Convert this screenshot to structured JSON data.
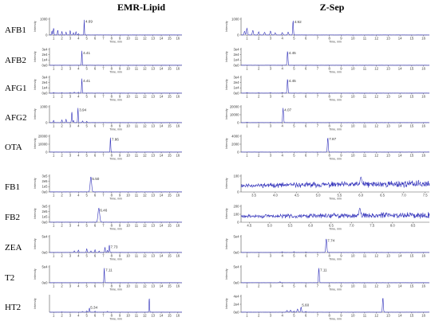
{
  "columns": [
    "EMR-Lipid",
    "Z-Sep"
  ],
  "rows": [
    "AFB1",
    "AFB2",
    "AFG1",
    "AFG2",
    "OTA",
    "FB1",
    "FB2",
    "ZEA",
    "T2",
    "HT2"
  ],
  "colors": {
    "trace": "#3333bb",
    "axis": "#555555"
  },
  "chart_data": {
    "type": "line",
    "panel_x_title": "Time, min",
    "panel_y_title": "Intensity",
    "panels": [
      {
        "row": "AFB1",
        "col": 0,
        "xr": [
          0.5,
          16.5
        ],
        "ticks": [
          "1",
          "2",
          "3",
          "4",
          "5",
          "6",
          "7",
          "8",
          "9",
          "10",
          "11",
          "12",
          "13",
          "14",
          "15",
          "16"
        ],
        "yticks": [
          "1000",
          "0"
        ],
        "ymax": 1400,
        "peak": {
          "x": 4.69,
          "h": 1350,
          "w": 0.04,
          "label": "4.69"
        },
        "base": [
          [
            0.8,
            350
          ],
          [
            1.0,
            600
          ],
          [
            1.5,
            420
          ],
          [
            2.0,
            300
          ],
          [
            2.5,
            250
          ],
          [
            3.0,
            380
          ],
          [
            3.4,
            200
          ],
          [
            3.7,
            280
          ],
          [
            4.0,
            120
          ]
        ]
      },
      {
        "row": "AFB1",
        "col": 1,
        "xr": [
          0.5,
          16.5
        ],
        "ticks": [
          "1",
          "2",
          "3",
          "4",
          "5",
          "6",
          "7",
          "8",
          "9",
          "10",
          "11",
          "12",
          "13",
          "14",
          "15",
          "16"
        ],
        "yticks": [
          "1000",
          "0"
        ],
        "ymax": 1300,
        "peak": {
          "x": 4.92,
          "h": 1250,
          "w": 0.04,
          "label": "4.92"
        },
        "base": [
          [
            0.8,
            300
          ],
          [
            1.0,
            550
          ],
          [
            1.5,
            380
          ],
          [
            2.0,
            260
          ],
          [
            2.5,
            220
          ],
          [
            3.0,
            320
          ],
          [
            3.4,
            180
          ],
          [
            4.0,
            200
          ],
          [
            4.5,
            240
          ]
        ]
      },
      {
        "row": "AFB2",
        "col": 0,
        "xr": [
          0.5,
          16.5
        ],
        "ticks": [
          "1",
          "2",
          "3",
          "4",
          "5",
          "6",
          "7",
          "8",
          "9",
          "10",
          "11",
          "12",
          "13",
          "14",
          "15",
          "16"
        ],
        "yticks": [
          "3e4",
          "2e4",
          "1e4",
          "0e0"
        ],
        "ymax": 34000,
        "peak": {
          "x": 4.41,
          "h": 31000,
          "w": 0.05,
          "label": "4.41"
        },
        "base": []
      },
      {
        "row": "AFB2",
        "col": 1,
        "xr": [
          0.5,
          16.5
        ],
        "ticks": [
          "1",
          "2",
          "3",
          "4",
          "5",
          "6",
          "7",
          "8",
          "9",
          "10",
          "11",
          "12",
          "13",
          "14",
          "15",
          "16"
        ],
        "yticks": [
          "3e4",
          "2e4",
          "1e4",
          "0e0"
        ],
        "ymax": 34000,
        "peak": {
          "x": 4.45,
          "h": 31000,
          "w": 0.05,
          "label": "4.45"
        },
        "base": []
      },
      {
        "row": "AFG1",
        "col": 0,
        "xr": [
          0.5,
          16.5
        ],
        "ticks": [
          "1",
          "2",
          "3",
          "4",
          "5",
          "6",
          "7",
          "8",
          "9",
          "10",
          "11",
          "12",
          "13",
          "14",
          "15",
          "16"
        ],
        "yticks": [
          "3e4",
          "2e4",
          "1e4",
          "0e0"
        ],
        "ymax": 34000,
        "peak": {
          "x": 4.41,
          "h": 31000,
          "w": 0.05,
          "label": "4.41"
        },
        "base": [
          [
            1.0,
            1500
          ],
          [
            2.0,
            900
          ],
          [
            3.0,
            1200
          ],
          [
            3.5,
            2200
          ],
          [
            4.0,
            1800
          ]
        ]
      },
      {
        "row": "AFG1",
        "col": 1,
        "xr": [
          0.5,
          16.5
        ],
        "ticks": [
          "1",
          "2",
          "3",
          "4",
          "5",
          "6",
          "7",
          "8",
          "9",
          "10",
          "11",
          "12",
          "13",
          "14",
          "15",
          "16"
        ],
        "yticks": [
          "3e4",
          "2e4",
          "1e4",
          "0e0"
        ],
        "ymax": 34000,
        "peak": {
          "x": 4.45,
          "h": 31000,
          "w": 0.05,
          "label": "4.45"
        },
        "base": [
          [
            1.0,
            1200
          ],
          [
            2.0,
            800
          ],
          [
            3.0,
            1000
          ],
          [
            4.0,
            1400
          ]
        ]
      },
      {
        "row": "AFG2",
        "col": 0,
        "xr": [
          0.5,
          16.5
        ],
        "ticks": [
          "1",
          "2",
          "3",
          "4",
          "5",
          "6",
          "7",
          "8",
          "9",
          "10",
          "11",
          "12",
          "13",
          "14",
          "15",
          "16"
        ],
        "yticks": [
          "1000",
          "0"
        ],
        "ymax": 1500,
        "peak": {
          "x": 3.94,
          "h": 1400,
          "w": 0.05,
          "label": "3.94"
        },
        "base": [
          [
            1.0,
            200
          ],
          [
            2.0,
            250
          ],
          [
            2.5,
            300
          ],
          [
            3.2,
            1000
          ],
          [
            3.4,
            200
          ],
          [
            4.5,
            150
          ],
          [
            5.0,
            120
          ]
        ]
      },
      {
        "row": "AFG2",
        "col": 1,
        "xr": [
          0.5,
          16.5
        ],
        "ticks": [
          "1",
          "2",
          "3",
          "4",
          "5",
          "6",
          "7",
          "8",
          "9",
          "10",
          "11",
          "12",
          "13",
          "14",
          "15",
          "16"
        ],
        "yticks": [
          "20000",
          "10000",
          "0"
        ],
        "ymax": 24000,
        "peak": {
          "x": 4.07,
          "h": 22000,
          "w": 0.05,
          "label": "4.07"
        },
        "base": [
          [
            1.0,
            500
          ],
          [
            2.0,
            300
          ],
          [
            3.0,
            400
          ]
        ]
      },
      {
        "row": "OTA",
        "col": 0,
        "xr": [
          0.5,
          16.5
        ],
        "ticks": [
          "1",
          "2",
          "3",
          "4",
          "5",
          "6",
          "7",
          "8",
          "9",
          "10",
          "11",
          "12",
          "13",
          "14",
          "15",
          "16"
        ],
        "yticks": [
          "20000",
          "10000",
          "0"
        ],
        "ymax": 27000,
        "peak": {
          "x": 7.86,
          "h": 25000,
          "w": 0.05,
          "label": "7.86"
        },
        "base": []
      },
      {
        "row": "OTA",
        "col": 1,
        "xr": [
          0.5,
          16.5
        ],
        "ticks": [
          "1",
          "2",
          "3",
          "4",
          "5",
          "6",
          "7",
          "8",
          "9",
          "10",
          "11",
          "12",
          "13",
          "14",
          "15",
          "16"
        ],
        "yticks": [
          "4000",
          "2000",
          "0"
        ],
        "ymax": 5200,
        "peak": {
          "x": 7.87,
          "h": 4900,
          "w": 0.05,
          "label": "7.87"
        },
        "base": []
      },
      {
        "row": "FB1",
        "col": 0,
        "xr": [
          0.5,
          16.5
        ],
        "ticks": [
          "1",
          "2",
          "3",
          "4",
          "5",
          "6",
          "7",
          "8",
          "9",
          "10",
          "11",
          "12",
          "13",
          "14",
          "15",
          "16"
        ],
        "yticks": [
          "3e5",
          "2e5",
          "1e5",
          "0e0"
        ],
        "ymax": 340000,
        "peak": {
          "x": 5.5,
          "h": 320000,
          "w": 0.12,
          "label": "5.50"
        },
        "base": []
      },
      {
        "row": "FB1",
        "col": 1,
        "xr": [
          3.2,
          7.6
        ],
        "ticks": [
          "3.5",
          "4.0",
          "4.5",
          "5.0",
          "5.5",
          "6.0",
          "6.5",
          "7.0",
          "7.5"
        ],
        "yticks": [
          "100",
          "0"
        ],
        "ymax": 160,
        "noise": {
          "seed": 11,
          "lo": 40,
          "hi": 140,
          "bump": [
            6.0,
            150
          ]
        },
        "peak": null,
        "base": []
      },
      {
        "row": "FB2",
        "col": 0,
        "xr": [
          0.5,
          16.5
        ],
        "ticks": [
          "1",
          "2",
          "3",
          "4",
          "5",
          "6",
          "7",
          "8",
          "9",
          "10",
          "11",
          "12",
          "13",
          "14",
          "15",
          "16"
        ],
        "yticks": [
          "3e5",
          "2e5",
          "1e5",
          "0e0"
        ],
        "ymax": 340000,
        "peak": {
          "x": 6.46,
          "h": 300000,
          "w": 0.14,
          "label": "6.46"
        },
        "base": []
      },
      {
        "row": "FB2",
        "col": 1,
        "xr": [
          4.3,
          8.9
        ],
        "ticks": [
          "4.5",
          "5.0",
          "5.5",
          "6.0",
          "6.5",
          "7.0",
          "7.5",
          "8.0",
          "8.5"
        ],
        "yticks": [
          "200",
          "100",
          "0"
        ],
        "ymax": 260,
        "noise": {
          "seed": 29,
          "lo": 60,
          "hi": 200,
          "bump": [
            7.2,
            230
          ]
        },
        "peak": null,
        "base": []
      },
      {
        "row": "ZEA",
        "col": 0,
        "xr": [
          0.5,
          16.5
        ],
        "ticks": [
          "1",
          "2",
          "3",
          "4",
          "5",
          "6",
          "7",
          "8",
          "9",
          "10",
          "11",
          "12",
          "13",
          "14",
          "15",
          "16"
        ],
        "yticks": [
          "5e4",
          "0e0"
        ],
        "ymax": 60000,
        "peak": {
          "x": 7.73,
          "h": 28000,
          "w": 0.06,
          "label": "7.73"
        },
        "base": [
          [
            3.5,
            6000
          ],
          [
            4.0,
            9000
          ],
          [
            5.0,
            14000
          ],
          [
            5.5,
            6000
          ],
          [
            6.0,
            10000
          ],
          [
            6.5,
            5000
          ],
          [
            7.2,
            19000
          ],
          [
            7.5,
            8000
          ]
        ]
      },
      {
        "row": "ZEA",
        "col": 1,
        "xr": [
          0.5,
          16.5
        ],
        "ticks": [
          "1",
          "2",
          "3",
          "4",
          "5",
          "6",
          "7",
          "8",
          "9",
          "10",
          "11",
          "12",
          "13",
          "14",
          "15",
          "16"
        ],
        "yticks": [
          "5e4",
          "0e0"
        ],
        "ymax": 60000,
        "peak": {
          "x": 7.74,
          "h": 52000,
          "w": 0.06,
          "label": "7.74"
        },
        "base": [
          [
            4.0,
            2500
          ],
          [
            5.0,
            3000
          ],
          [
            6.0,
            2000
          ]
        ]
      },
      {
        "row": "T2",
        "col": 0,
        "xr": [
          0.5,
          16.5
        ],
        "ticks": [
          "1",
          "2",
          "3",
          "4",
          "5",
          "6",
          "7",
          "8",
          "9",
          "10",
          "11",
          "12",
          "13",
          "14",
          "15",
          "16"
        ],
        "yticks": [
          "5e4",
          "0e0"
        ],
        "ymax": 70000,
        "peak": {
          "x": 7.11,
          "h": 65000,
          "w": 0.05,
          "label": "7.11"
        },
        "base": []
      },
      {
        "row": "T2",
        "col": 1,
        "xr": [
          0.5,
          16.5
        ],
        "ticks": [
          "1",
          "2",
          "3",
          "4",
          "5",
          "6",
          "7",
          "8",
          "9",
          "10",
          "11",
          "12",
          "13",
          "14",
          "15",
          "16"
        ],
        "yticks": [
          "5e4",
          "0e0"
        ],
        "ymax": 70000,
        "peak": {
          "x": 7.11,
          "h": 65000,
          "w": 0.05,
          "label": "7.11"
        },
        "base": [
          [
            3.8,
            4000
          ]
        ]
      },
      {
        "row": "HT2",
        "col": 0,
        "xr": [
          0.5,
          16.5
        ],
        "ticks": [
          "1",
          "2",
          "3",
          "4",
          "5",
          "6",
          "7",
          "8",
          "9",
          "10",
          "11",
          "12",
          "13",
          "14",
          "15",
          "16"
        ],
        "yticks": [],
        "ymax": 4,
        "peak": {
          "x": 12.55,
          "h": 3.6,
          "w": 0.05,
          "label": ""
        },
        "annot": {
          "x": 5.34,
          "h": 0.7,
          "label": "5.34"
        },
        "base": [
          [
            2.0,
            0.1
          ],
          [
            4.5,
            0.2
          ],
          [
            5.0,
            0.35
          ],
          [
            5.3,
            0.5
          ],
          [
            6.0,
            0.25
          ],
          [
            7.5,
            0.2
          ]
        ]
      },
      {
        "row": "HT2",
        "col": 1,
        "xr": [
          0.5,
          16.5
        ],
        "ticks": [
          "1",
          "2",
          "3",
          "4",
          "5",
          "6",
          "7",
          "8",
          "9",
          "10",
          "11",
          "12",
          "13",
          "14",
          "15",
          "16"
        ],
        "yticks": [
          "4e4",
          "2e4",
          "0e0"
        ],
        "ymax": 45000,
        "peak": {
          "x": 12.55,
          "h": 42000,
          "w": 0.05,
          "label": ""
        },
        "annot": {
          "x": 5.6,
          "h": 15000,
          "label": "5.60"
        },
        "base": [
          [
            4.4,
            5000
          ],
          [
            4.7,
            6000
          ],
          [
            5.0,
            3000
          ],
          [
            5.3,
            9000
          ],
          [
            6.0,
            2000
          ]
        ]
      }
    ]
  }
}
